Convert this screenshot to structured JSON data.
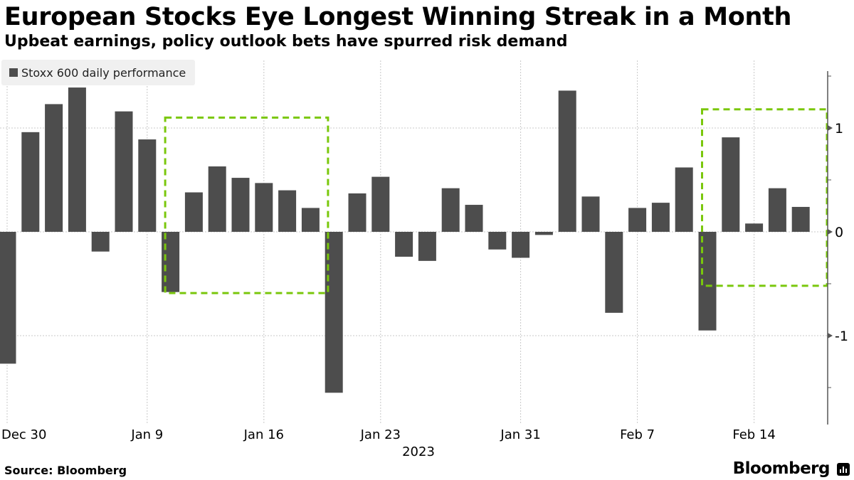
{
  "chart_data": {
    "type": "bar",
    "title": "European Stocks Eye Longest Winning Streak in a Month",
    "subtitle": "Upbeat earnings, policy outlook bets have spurred risk demand",
    "series": [
      {
        "name": "Stoxx 600 daily performance",
        "color": "#4d4d4d",
        "values": [
          -1.27,
          0.96,
          1.23,
          1.39,
          -0.19,
          1.16,
          0.89,
          -0.58,
          0.38,
          0.63,
          0.52,
          0.47,
          0.4,
          0.23,
          -1.55,
          0.37,
          0.53,
          -0.24,
          -0.28,
          0.42,
          0.26,
          -0.17,
          -0.25,
          -0.03,
          1.36,
          0.34,
          -0.78,
          0.23,
          0.28,
          0.62,
          -0.95,
          0.91,
          0.08,
          0.42,
          0.24
        ]
      }
    ],
    "x_tick_labels": [
      {
        "index": 0,
        "label": "Dec 30"
      },
      {
        "index": 6,
        "label": "Jan 9"
      },
      {
        "index": 11,
        "label": "Jan 16"
      },
      {
        "index": 16,
        "label": "Jan 23"
      },
      {
        "index": 22,
        "label": "Jan 31"
      },
      {
        "index": 27,
        "label": "Feb 7"
      },
      {
        "index": 32,
        "label": "Feb 14"
      }
    ],
    "xlabel": "2023",
    "ylabel": "",
    "y_ticks": [
      1,
      0,
      -1
    ],
    "ylim": [
      -1.84,
      1.55
    ],
    "grid": true,
    "legend_position": "top-left",
    "highlights": [
      {
        "from_index": 7,
        "to_index": 13,
        "y_top": 1.1,
        "y_bottom": -0.59,
        "color": "#7ac70c"
      },
      {
        "from_index": 30,
        "to_index": 35,
        "y_top": 1.18,
        "y_bottom": -0.52,
        "color": "#7ac70c"
      }
    ]
  },
  "footer": {
    "source": "Source: Bloomberg",
    "brand": "Bloomberg"
  }
}
